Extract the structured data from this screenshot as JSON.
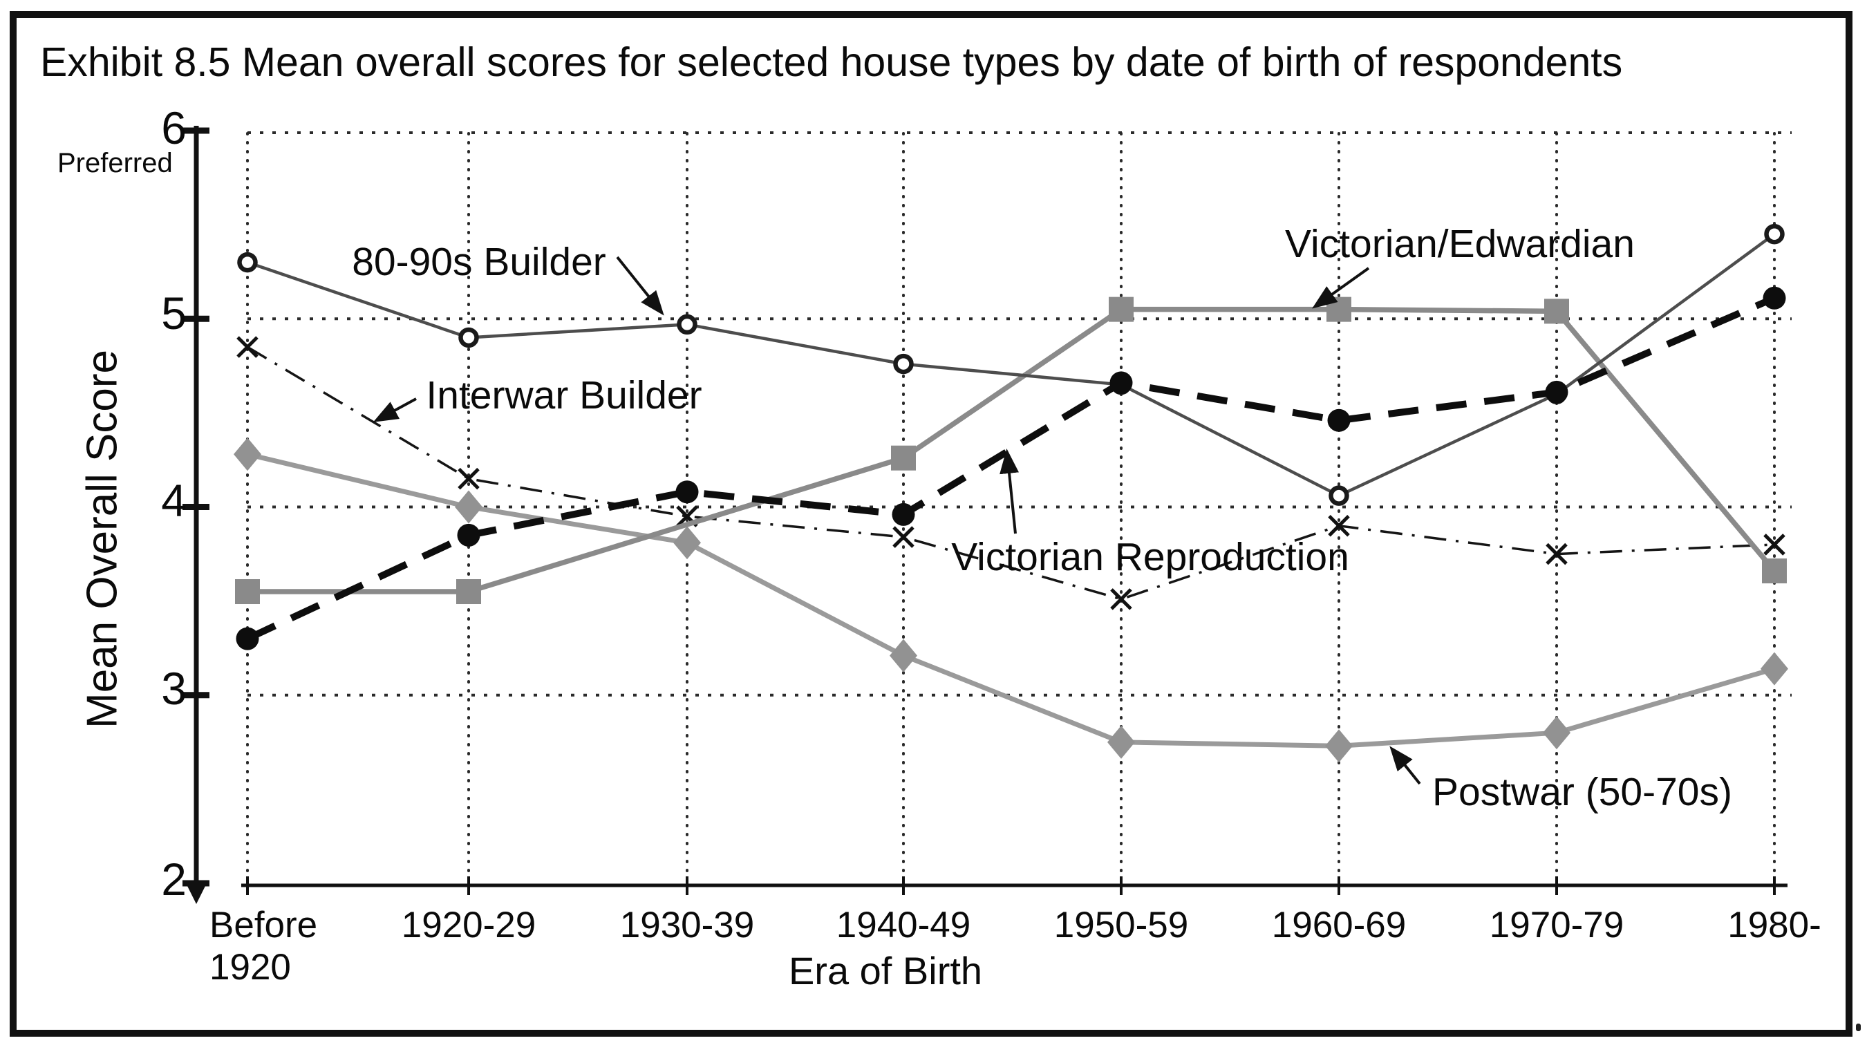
{
  "title": "Exhibit 8.5 Mean overall scores for selected house types by date of birth of respondents",
  "y_axis": {
    "title": "Mean Overall Score",
    "note": "Preferred",
    "tick_labels": [
      "6",
      "5",
      "4",
      "3",
      "2"
    ],
    "tick_values": [
      6,
      5,
      4,
      3,
      2
    ]
  },
  "x_axis": {
    "title": "Era of Birth",
    "labels": [
      "Before\n1920",
      "1920-29",
      "1930-39",
      "1940-49",
      "1950-59",
      "1960-69",
      "1970-79",
      "1980-"
    ]
  },
  "chart_data": {
    "type": "line",
    "categories": [
      "Before 1920",
      "1920-29",
      "1930-39",
      "1940-49",
      "1950-59",
      "1960-69",
      "1970-79",
      "1980-"
    ],
    "ylim": [
      2,
      6
    ],
    "grid": "dotted",
    "legend_position": "in-plot-annotations",
    "series": [
      {
        "name": "80-90s Builder",
        "marker": "open-circle",
        "line_style": "solid",
        "color": "#4d4d4d",
        "values": [
          5.3,
          4.9,
          4.97,
          4.76,
          4.65,
          4.06,
          4.6,
          5.45
        ]
      },
      {
        "name": "Interwar Builder",
        "marker": "x",
        "line_style": "dash-dot",
        "color": "#151515",
        "values": [
          4.85,
          4.15,
          3.95,
          3.84,
          3.51,
          3.9,
          3.75,
          3.8
        ]
      },
      {
        "name": "Victorian/Edwardian",
        "marker": "square",
        "line_style": "solid",
        "color": "#8a8a8a",
        "values": [
          3.55,
          3.55,
          null,
          4.26,
          5.05,
          5.05,
          5.04,
          3.66
        ]
      },
      {
        "name": "Victorian Reproduction",
        "marker": "filled-circle",
        "line_style": "dashed",
        "color": "#0d0d0d",
        "values": [
          3.3,
          3.85,
          4.08,
          3.96,
          4.66,
          4.46,
          4.61,
          5.11
        ]
      },
      {
        "name": "Postwar (50-70s)",
        "marker": "diamond",
        "line_style": "solid",
        "color": "#9a9a9a",
        "values": [
          4.28,
          4.0,
          3.81,
          3.21,
          2.75,
          2.73,
          2.8,
          3.14
        ]
      }
    ],
    "annotations": [
      {
        "text": "80-90s Builder"
      },
      {
        "text": "Interwar Builder"
      },
      {
        "text": "Victorian/Edwardian"
      },
      {
        "text": "Victorian Reproduction"
      },
      {
        "text": "Postwar (50-70s)"
      }
    ]
  }
}
